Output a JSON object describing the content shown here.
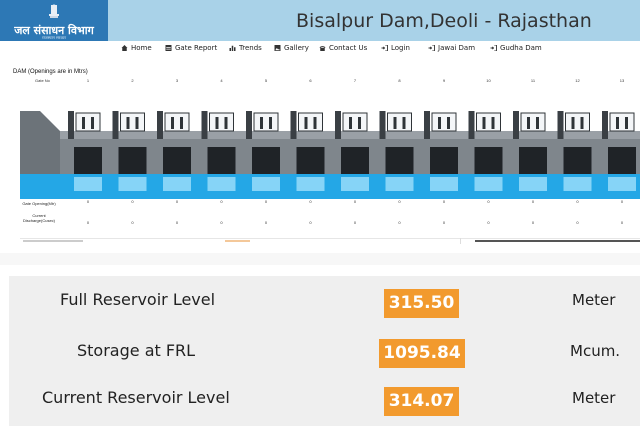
{
  "header": {
    "logo_text": "जल संसाधन विभाग",
    "logo_sub": "राजस्थान सरकार",
    "title": "Bisalpur Dam,Deoli - Rajasthan"
  },
  "nav": {
    "items": [
      {
        "label": "Home",
        "icon": "home-icon"
      },
      {
        "label": "Gate Report",
        "icon": "table-icon"
      },
      {
        "label": "Trends",
        "icon": "bar-chart-icon"
      },
      {
        "label": "Gallery",
        "icon": "image-icon"
      },
      {
        "label": "Contact Us",
        "icon": "phone-icon"
      },
      {
        "label": "Login",
        "icon": "login-icon"
      },
      {
        "label": "Jawai Dam",
        "icon": "login-icon"
      },
      {
        "label": "Gudha Dam",
        "icon": "login-icon"
      }
    ]
  },
  "dam": {
    "title": "DAM (Openings are in Mtrs)",
    "gate_no_label": "Gate No",
    "gates": [
      "1",
      "2",
      "3",
      "4",
      "5",
      "6",
      "7",
      "8",
      "9",
      "10",
      "11",
      "12",
      "13"
    ],
    "gate_opening_label": "Gate Opening(Mtr)",
    "gate_openings": [
      "0",
      "0",
      "0",
      "0",
      "0",
      "0",
      "0",
      "0",
      "0",
      "0",
      "0",
      "0",
      "0"
    ],
    "discharge_label_line1": "Current",
    "discharge_label_line2": "Discharge(Cusec)",
    "discharges": [
      "0",
      "0",
      "0",
      "0",
      "0",
      "0",
      "0",
      "0",
      "0",
      "0",
      "0",
      "0",
      "0"
    ]
  },
  "stats": [
    {
      "label": "Full Reservoir Level",
      "value": "315.50",
      "unit": "Meter"
    },
    {
      "label": "Storage at FRL",
      "value": "1095.84",
      "unit": "Mcum."
    },
    {
      "label": "Current Reservoir Level",
      "value": "314.07",
      "unit": "Meter"
    }
  ],
  "colors": {
    "header_bg": "#a9d2e8",
    "logo_bg": "#2d78b5",
    "accent": "#f29a2e",
    "water": "#24a7e6"
  }
}
